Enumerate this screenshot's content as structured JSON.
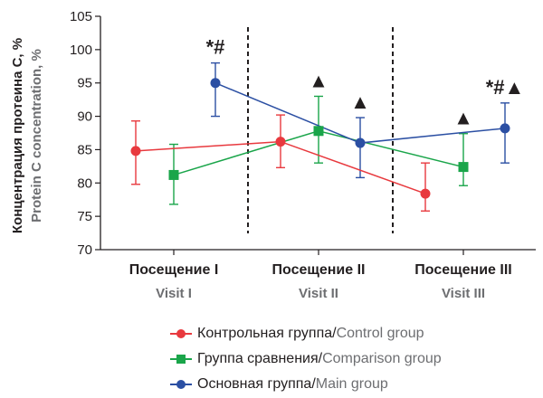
{
  "chart_data": {
    "type": "line",
    "title": "",
    "ylabel_ru": "Концентрация протеина C, %",
    "ylabel_en": "Protein C concentration, %",
    "ylim": [
      70,
      105
    ],
    "yticks": [
      70,
      75,
      80,
      85,
      90,
      95,
      100,
      105
    ],
    "categories": [
      {
        "ru": "Посещение I",
        "en": "Visit I"
      },
      {
        "ru": "Посещение II",
        "en": "Visit II"
      },
      {
        "ru": "Посещение III",
        "en": "Visit III"
      }
    ],
    "series": [
      {
        "key": "control",
        "name_ru": "Контрольная группа",
        "name_en": "Control group",
        "color": "#e8393e",
        "marker": "circle",
        "values": [
          84.8,
          86.2,
          78.4
        ],
        "err_low": [
          79.8,
          82.3,
          75.8
        ],
        "err_high": [
          89.3,
          90.2,
          83.0
        ]
      },
      {
        "key": "comparison",
        "name_ru": "Группа сравнения",
        "name_en": "Comparison group",
        "color": "#1aa54a",
        "marker": "square",
        "values": [
          81.2,
          87.8,
          82.4
        ],
        "err_low": [
          76.8,
          83.0,
          79.6
        ],
        "err_high": [
          85.8,
          93.0,
          87.4
        ]
      },
      {
        "key": "main",
        "name_ru": "Основная группа",
        "name_en": "Main group",
        "color": "#2b4fa3",
        "marker": "circle",
        "values": [
          95.0,
          86.0,
          88.2
        ],
        "err_low": [
          90.0,
          80.8,
          83.0
        ],
        "err_high": [
          98.0,
          89.8,
          92.0
        ]
      }
    ],
    "annotations": [
      {
        "text": "*#",
        "series": "main",
        "visit": 0
      },
      {
        "text": "▲",
        "series": "comparison",
        "visit": 1
      },
      {
        "text": "▲",
        "series": "main",
        "visit": 1
      },
      {
        "text": "▲",
        "series": "comparison",
        "visit": 2
      },
      {
        "text": "*#▲",
        "series": "main",
        "visit": 2
      }
    ],
    "legend_position": "bottom",
    "grid": false
  },
  "legend": {
    "separator": " / "
  }
}
